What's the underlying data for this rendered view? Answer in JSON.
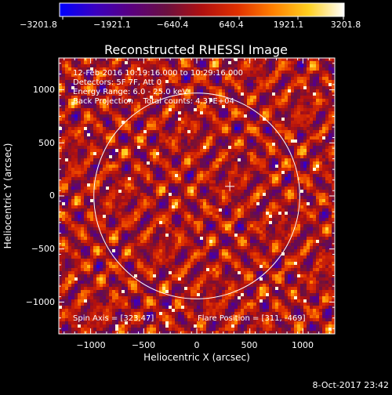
{
  "colorbar": {
    "tick_labels": [
      "−3201.8",
      "−1921.1",
      "−640.4",
      "640.4",
      "1921.1",
      "3201.8"
    ],
    "range": [
      -3201.8,
      3201.8
    ],
    "colormap": [
      "#0000ff",
      "#3a00c0",
      "#5a0080",
      "#6a1040",
      "#b01010",
      "#e03000",
      "#ff8000",
      "#ffd020",
      "#ffffff"
    ]
  },
  "chart_data": {
    "type": "heatmap",
    "title": "Reconstructed RHESSI Image",
    "xlabel": "Heliocentric X (arcsec)",
    "ylabel": "Heliocentric Y (arcsec)",
    "xlim": [
      -1300,
      1300
    ],
    "ylim": [
      -1300,
      1300
    ],
    "x_ticks": [
      -1000,
      -500,
      0,
      500,
      1000
    ],
    "y_ticks": [
      -1000,
      -500,
      0,
      500,
      1000
    ],
    "x_tick_labels": [
      "−1000",
      "−500",
      "0",
      "500",
      "1000"
    ],
    "y_tick_labels": [
      "−1000",
      "−500",
      "0",
      "500",
      "1000"
    ],
    "solar_limb_radius_arcsec": 970,
    "flare_position": [
      311,
      -469
    ],
    "flare_marker_position": [
      311,
      90
    ],
    "annotations": [
      "12-Feb-2016 10:19:16.000 to 10:29:16.000",
      "Detectors: 5F 7F, Att 0",
      "Energy Range: 6.0 - 25.0 keV",
      "Back Projection    Total counts: 4.37E+04"
    ],
    "spin_axis": "Spin Axis = [323,47]",
    "flare_label": "Flare Position = [311, -469]"
  },
  "footer": {
    "date": "8-Oct-2017 23:42"
  }
}
